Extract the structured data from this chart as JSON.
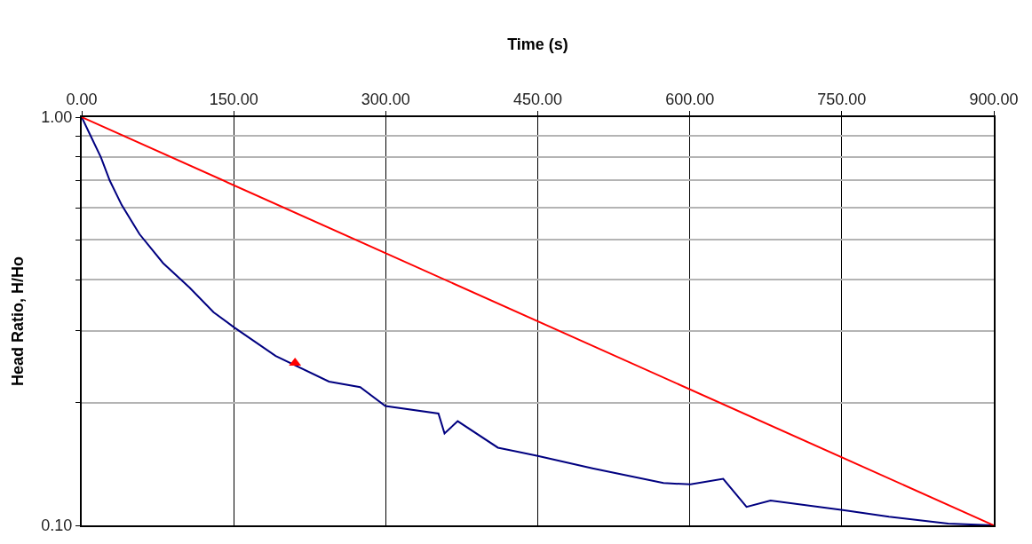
{
  "chart_data": {
    "type": "line",
    "xlabel": "Time (s)",
    "ylabel": "Head Ratio, H/Ho",
    "xlim": [
      0,
      900
    ],
    "xticks": [
      {
        "value": 0,
        "label": "0.00"
      },
      {
        "value": 150,
        "label": "150.00"
      },
      {
        "value": 300,
        "label": "300.00"
      },
      {
        "value": 450,
        "label": "450.00"
      },
      {
        "value": 600,
        "label": "600.00"
      },
      {
        "value": 750,
        "label": "750.00"
      },
      {
        "value": 900,
        "label": "900.00"
      }
    ],
    "ylim": [
      0.1,
      1
    ],
    "yticks": [
      {
        "value": 0.1,
        "label": "0.10"
      },
      {
        "value": 0.2,
        "label": null
      },
      {
        "value": 0.3,
        "label": null
      },
      {
        "value": 0.4,
        "label": null
      },
      {
        "value": 0.5,
        "label": null
      },
      {
        "value": 0.6,
        "label": null
      },
      {
        "value": 0.7,
        "label": null
      },
      {
        "value": 0.8,
        "label": null
      },
      {
        "value": 0.9,
        "label": null
      },
      {
        "value": 1,
        "label": "1.00"
      }
    ],
    "log": "y",
    "grid": true,
    "series": [
      {
        "color": "#000080",
        "marker": "none",
        "x": [
          0,
          7.3,
          19,
          27.7,
          39.5,
          57,
          80.3,
          106.6,
          130,
          150,
          191.4,
          244,
          274.8,
          299.6,
          352,
          358,
          371,
          410.7,
          450,
          504,
          574,
          600.7,
          633,
          656,
          679.7,
          751,
          796.6,
          855,
          900
        ],
        "values": [
          1,
          0.916,
          0.797,
          0.699,
          0.609,
          0.517,
          0.439,
          0.382,
          0.333,
          0.306,
          0.26,
          0.225,
          0.218,
          0.196,
          0.188,
          0.168,
          0.18,
          0.155,
          0.148,
          0.138,
          0.127,
          0.126,
          0.13,
          0.111,
          0.115,
          0.109,
          0.105,
          0.101,
          0.1
        ]
      },
      {
        "color": "#ff0000",
        "marker": "none",
        "x": [
          0,
          900
        ],
        "values": [
          1,
          0.1
        ]
      },
      {
        "type": "scatter",
        "color": "#ff0000",
        "marker": "triangle",
        "x": [
          210.5
        ],
        "values": [
          0.25
        ]
      }
    ]
  }
}
